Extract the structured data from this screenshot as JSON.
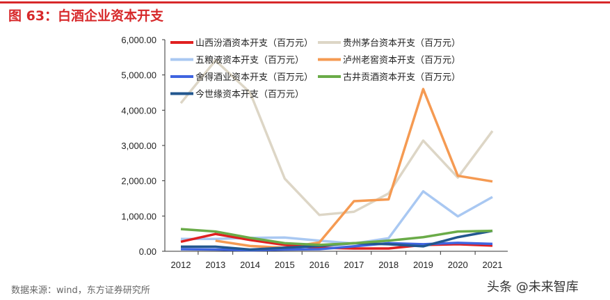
{
  "title": "图 63：白酒企业资本开支",
  "source": "数据来源：wind，东方证券研究所",
  "watermark": "头条 @未来智库",
  "chart_data": {
    "type": "line",
    "title": "",
    "xlabel": "",
    "ylabel": "",
    "ylim": [
      0,
      6000
    ],
    "yticks": [
      "0.00",
      "1,000.00",
      "2,000.00",
      "3,000.00",
      "4,000.00",
      "5,000.00",
      "6,000.00"
    ],
    "x": [
      "2012",
      "2013",
      "2014",
      "2015",
      "2016",
      "2017",
      "2018",
      "2019",
      "2020",
      "2021"
    ],
    "grid": false,
    "legend_position": "top-left",
    "series": [
      {
        "name": "山西汾酒资本开支（百万元）",
        "color": "#e02020",
        "values": [
          270,
          490,
          320,
          180,
          100,
          80,
          80,
          180,
          200,
          160
        ]
      },
      {
        "name": "贵州茅台资本开支（百万元）",
        "color": "#ddd6c6",
        "values": [
          4200,
          5410,
          4500,
          2060,
          1030,
          1120,
          1640,
          3140,
          2090,
          3410
        ]
      },
      {
        "name": "五粮液资本开支（百万元）",
        "color": "#a9c8f2",
        "values": [
          350,
          350,
          380,
          390,
          300,
          220,
          370,
          1700,
          990,
          1540
        ]
      },
      {
        "name": "泸州老窖资本开支（百万元）",
        "color": "#f59a52",
        "values": [
          null,
          300,
          150,
          100,
          250,
          1420,
          1470,
          4600,
          2140,
          1980
        ]
      },
      {
        "name": "舍得酒业资本开支（百万元）",
        "color": "#3f64e0",
        "values": [
          60,
          50,
          30,
          50,
          60,
          140,
          230,
          200,
          240,
          210
        ]
      },
      {
        "name": "古井贡酒资本开支（百万元）",
        "color": "#6aab48",
        "values": [
          630,
          560,
          380,
          230,
          180,
          230,
          300,
          400,
          560,
          580
        ]
      },
      {
        "name": "今世缘资本开支（百万元）",
        "color": "#22578f",
        "values": [
          130,
          130,
          50,
          100,
          150,
          230,
          200,
          140,
          400,
          580
        ]
      }
    ]
  }
}
